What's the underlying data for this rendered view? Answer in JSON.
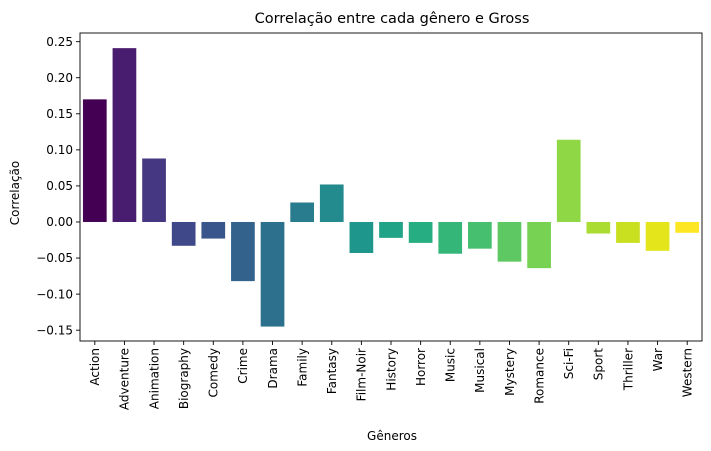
{
  "chart_data": {
    "type": "bar",
    "title": "Correlação entre cada gênero e Gross",
    "xlabel": "Gêneros",
    "ylabel": "Correlação",
    "ylim": [
      -0.165,
      0.262
    ],
    "yticks": [
      -0.15,
      -0.1,
      -0.05,
      0.0,
      0.05,
      0.1,
      0.15,
      0.2,
      0.25
    ],
    "ytick_labels": [
      "−0.15",
      "−0.10",
      "−0.05",
      "0.00",
      "0.05",
      "0.10",
      "0.15",
      "0.20",
      "0.25"
    ],
    "grid": false,
    "legend": "none",
    "palette": "viridis",
    "categories": [
      "Action",
      "Adventure",
      "Animation",
      "Biography",
      "Comedy",
      "Crime",
      "Drama",
      "Family",
      "Fantasy",
      "Film-Noir",
      "History",
      "Horror",
      "Music",
      "Musical",
      "Mystery",
      "Romance",
      "Sci-Fi",
      "Sport",
      "Thriller",
      "War",
      "Western"
    ],
    "values": [
      0.17,
      0.241,
      0.088,
      -0.033,
      -0.023,
      -0.082,
      -0.145,
      0.027,
      0.052,
      -0.043,
      -0.022,
      -0.029,
      -0.044,
      -0.037,
      -0.055,
      -0.064,
      0.114,
      -0.016,
      -0.029,
      -0.04,
      -0.015
    ],
    "colors": [
      "#440154",
      "#481c6e",
      "#453781",
      "#3f4889",
      "#39568c",
      "#33638d",
      "#2d708e",
      "#287c8e",
      "#238a8d",
      "#1f968b",
      "#20a386",
      "#26ad81",
      "#34b679",
      "#46c06f",
      "#5ec962",
      "#77d153",
      "#8fd744",
      "#abdc32",
      "#c8e020",
      "#e4e51a",
      "#fde725"
    ]
  }
}
